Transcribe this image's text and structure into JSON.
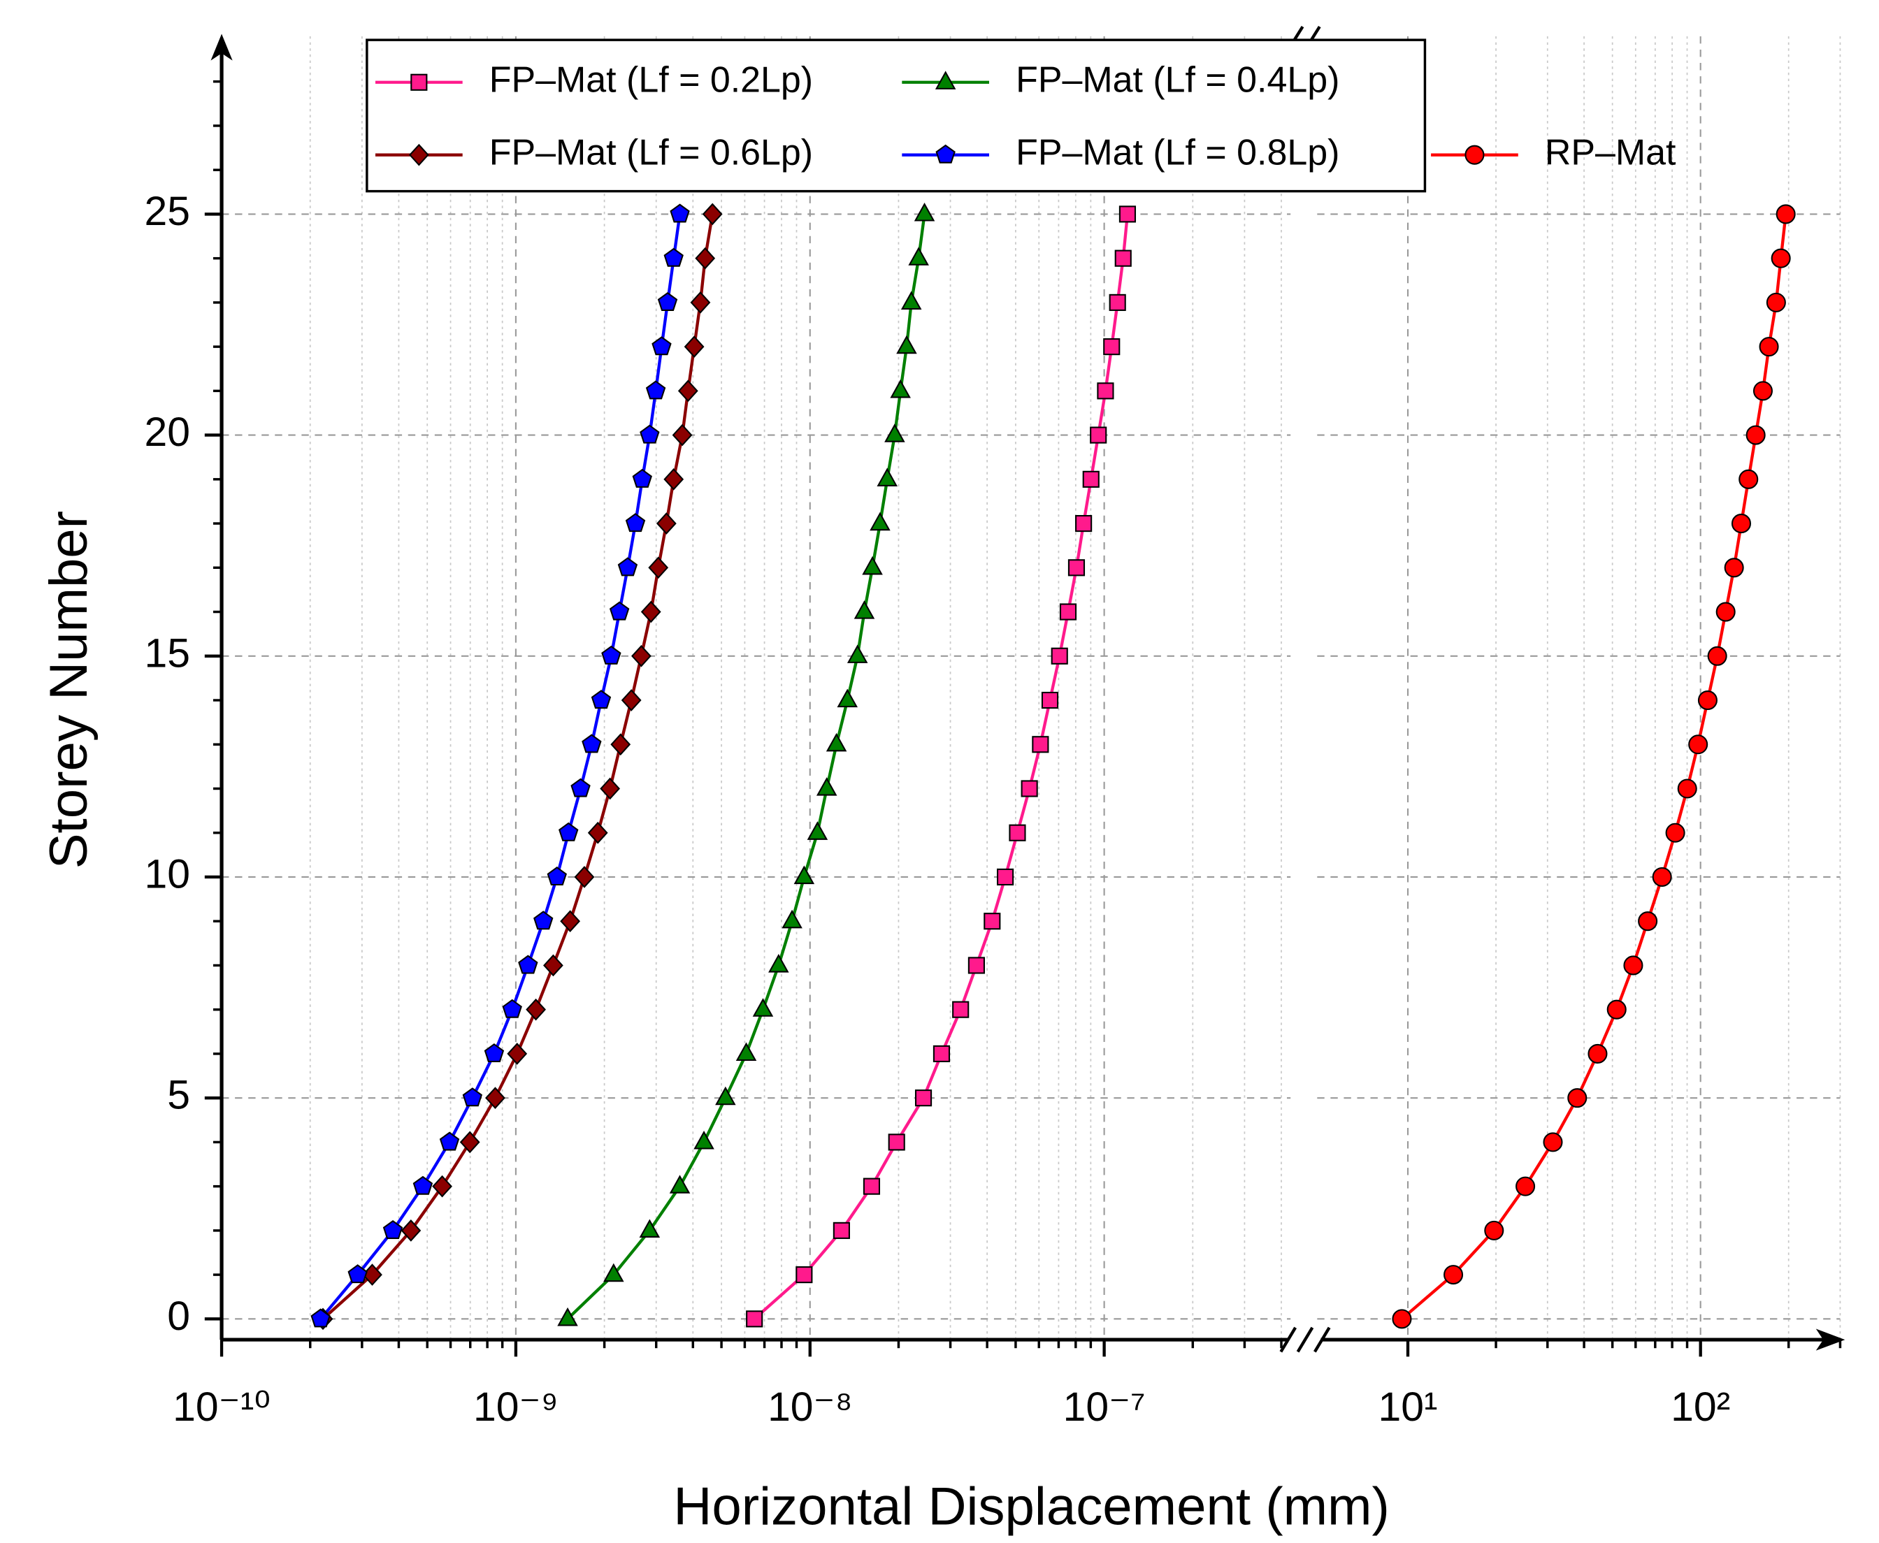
{
  "chart_data": {
    "type": "line",
    "x_label": "Horizontal Displacement (mm)",
    "y_label": "Storey Number",
    "xscale": "log",
    "xlim": [
      1e-10,
      300
    ],
    "xbreak": [
      4.3e-07,
      4.9
    ],
    "xticks": [
      {
        "value": 1e-10,
        "label": "10⁻¹⁰"
      },
      {
        "value": 1e-09,
        "label": "10⁻⁹"
      },
      {
        "value": 1e-08,
        "label": "10⁻⁸"
      },
      {
        "value": 1e-07,
        "label": "10⁻⁷"
      },
      {
        "value": 10,
        "label": "10¹"
      },
      {
        "value": 100,
        "label": "10²"
      }
    ],
    "ylim": [
      -0.47,
      28.75
    ],
    "yticks": [
      0,
      5,
      10,
      15,
      20,
      25
    ],
    "grid": true,
    "legend": "upper center",
    "y": [
      0,
      1,
      2,
      3,
      4,
      5,
      6,
      7,
      8,
      9,
      10,
      11,
      12,
      13,
      14,
      15,
      16,
      17,
      18,
      19,
      20,
      21,
      22,
      23,
      24,
      25
    ],
    "series": [
      {
        "name": "FP–Mat (Lf = 0.2Lp)",
        "color": "#ff1a8c",
        "marker": "square",
        "x": [
          6.47e-09,
          9.55e-09,
          1.28e-08,
          1.62e-08,
          1.97e-08,
          2.43e-08,
          2.8e-08,
          3.25e-08,
          3.68e-08,
          4.16e-08,
          4.61e-08,
          5.07e-08,
          5.57e-08,
          6.07e-08,
          6.54e-08,
          7.05e-08,
          7.54e-08,
          8.05e-08,
          8.51e-08,
          9.02e-08,
          9.55e-08,
          1.01e-07,
          1.06e-07,
          1.11e-07,
          1.16e-07,
          1.2e-07
        ]
      },
      {
        "name": "FP–Mat (Lf = 0.4Lp)",
        "color": "#008000",
        "marker": "triangle",
        "x": [
          1.5e-09,
          2.15e-09,
          2.85e-09,
          3.61e-09,
          4.36e-09,
          5.16e-09,
          6.07e-09,
          6.92e-09,
          7.82e-09,
          8.69e-09,
          9.55e-09,
          1.06e-08,
          1.14e-08,
          1.23e-08,
          1.34e-08,
          1.45e-08,
          1.53e-08,
          1.63e-08,
          1.73e-08,
          1.83e-08,
          1.94e-08,
          2.03e-08,
          2.13e-08,
          2.21e-08,
          2.34e-08,
          2.45e-08
        ]
      },
      {
        "name": "FP–Mat (Lf = 0.6Lp)",
        "color": "#8b0000",
        "marker": "diamond",
        "x": [
          2.21e-10,
          3.25e-10,
          4.4e-10,
          5.62e-10,
          6.98e-10,
          8.51e-10,
          1.01e-09,
          1.17e-09,
          1.34e-09,
          1.53e-09,
          1.71e-09,
          1.9e-09,
          2.09e-09,
          2.27e-09,
          2.47e-09,
          2.67e-09,
          2.88e-09,
          3.05e-09,
          3.25e-09,
          3.44e-09,
          3.68e-09,
          3.85e-09,
          4.04e-09,
          4.24e-09,
          4.4e-09,
          4.66e-09
        ]
      },
      {
        "name": "FP–Mat (Lf = 0.8Lp)",
        "color": "#0000ff",
        "marker": "pentagon",
        "x": [
          2.17e-10,
          2.9e-10,
          3.82e-10,
          4.83e-10,
          5.95e-10,
          7.12e-10,
          8.44e-10,
          9.72e-10,
          1.1e-09,
          1.24e-09,
          1.38e-09,
          1.51e-09,
          1.66e-09,
          1.81e-09,
          1.95e-09,
          2.11e-09,
          2.25e-09,
          2.4e-09,
          2.55e-09,
          2.69e-09,
          2.85e-09,
          2.99e-09,
          3.13e-09,
          3.28e-09,
          3.44e-09,
          3.61e-09
        ]
      },
      {
        "name": "RP–Mat",
        "color": "#ff0000",
        "marker": "circle",
        "x": [
          9.54,
          14.3,
          19.7,
          25.2,
          31.3,
          37.9,
          44.5,
          51.7,
          58.9,
          66.0,
          73.9,
          82.0,
          90.1,
          98.1,
          105.8,
          114.1,
          121.9,
          130.2,
          137.8,
          145.8,
          154.4,
          163.4,
          171.3,
          181.3,
          188.2,
          195.6
        ]
      }
    ]
  }
}
